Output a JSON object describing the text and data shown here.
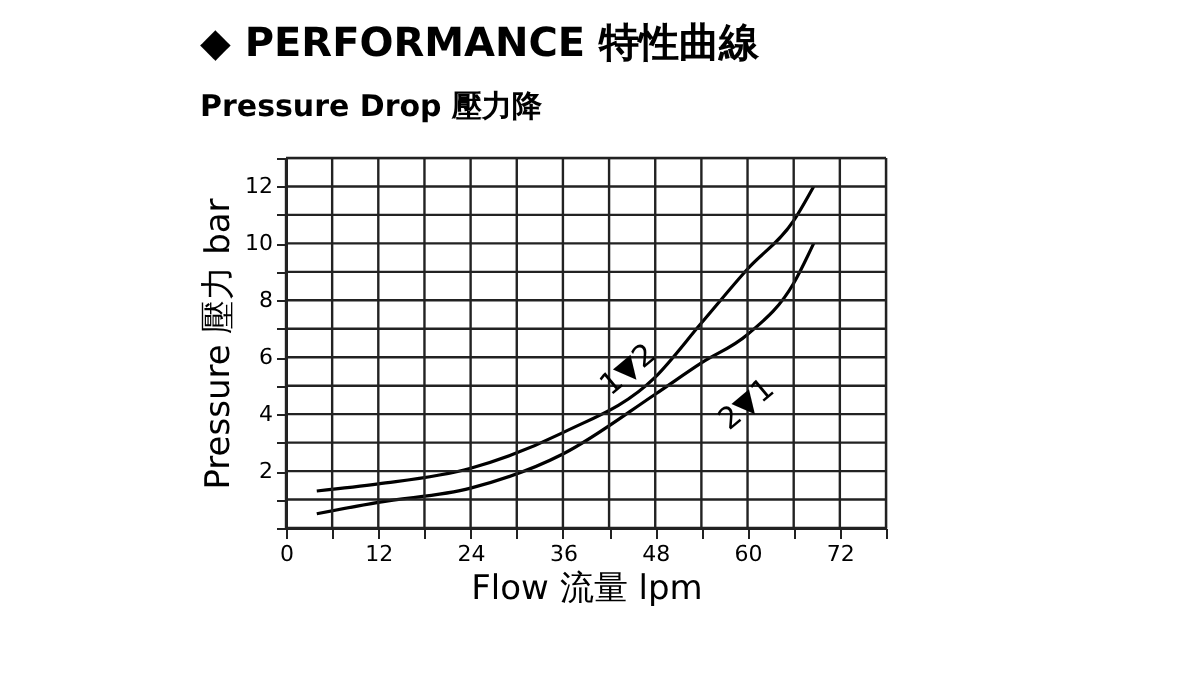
{
  "chart_data": {
    "type": "line",
    "title": "◆ PERFORMANCE 特性曲線",
    "subtitle": "Pressure Drop 壓力降",
    "xlabel": "Flow 流量 lpm",
    "ylabel": "Pressure 壓力 bar",
    "series": [
      {
        "color": "#000000",
        "x": [
          4,
          12,
          24,
          36,
          48,
          54,
          60,
          66,
          68.6
        ],
        "values": [
          1.3,
          1.55,
          2.1,
          3.35,
          5.3,
          7.2,
          9.1,
          10.8,
          12
        ]
      },
      {
        "color": "#000000",
        "x": [
          4,
          12,
          24,
          36,
          48,
          54,
          60,
          66,
          68.6
        ],
        "values": [
          0.5,
          0.9,
          1.4,
          2.6,
          4.7,
          5.8,
          6.8,
          8.6,
          10
        ]
      }
    ],
    "annotations": [
      {
        "text": "1▼2",
        "x": 48,
        "y": 5.3
      },
      {
        "text": "2▼1",
        "x": 54,
        "y": 5.8
      }
    ],
    "xlim": [
      0,
      78
    ],
    "ylim": [
      0,
      13
    ],
    "xticks": [
      0,
      {
        "value": 6,
        "label": null
      },
      12,
      {
        "value": 18,
        "label": null
      },
      24,
      {
        "value": 30,
        "label": null
      },
      36,
      {
        "value": 42,
        "label": null
      },
      48,
      {
        "value": 54,
        "label": null
      },
      60,
      {
        "value": 66,
        "label": null
      },
      72,
      {
        "value": 78,
        "label": null
      }
    ],
    "yticks": [
      {
        "value": 0,
        "label": null
      },
      {
        "value": 1,
        "label": null
      },
      2,
      {
        "value": 3,
        "label": null
      },
      4,
      {
        "value": 5,
        "label": null
      },
      6,
      {
        "value": 7,
        "label": null
      },
      8,
      {
        "value": 9,
        "label": null
      },
      10,
      {
        "value": 11,
        "label": null
      },
      12,
      {
        "value": 13,
        "label": null
      }
    ],
    "grid": true,
    "marker": "none",
    "line_style": "solid",
    "legend": false
  }
}
